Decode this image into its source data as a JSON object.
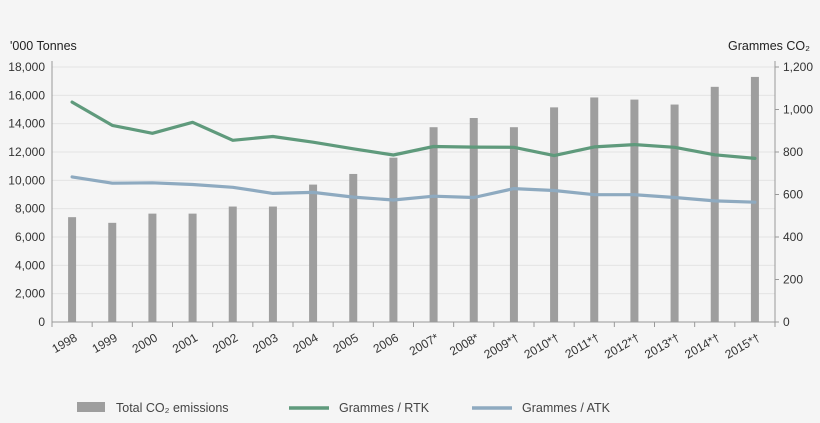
{
  "chart_data": {
    "type": "bar",
    "title": "",
    "left_axis_label": "'000 Tonnes",
    "right_axis_label": "Grammes  CO₂",
    "categories": [
      "1998",
      "1999",
      "2000",
      "2001",
      "2002",
      "2003",
      "2004",
      "2005",
      "2006",
      "2007*",
      "2008*",
      "2009*†",
      "2010*†",
      "2011*†",
      "2012*†",
      "2013*†",
      "2014*†",
      "2015*†"
    ],
    "left_axis": {
      "min": 0,
      "max": 18000,
      "ticks": [
        "0",
        "2,000",
        "4,000",
        "6,000",
        "8,000",
        "10,000",
        "12,000",
        "14,000",
        "16,000",
        "18,000"
      ]
    },
    "right_axis": {
      "min": 0,
      "max": 1200,
      "ticks": [
        "0",
        "200",
        "400",
        "600",
        "800",
        "1,000",
        "1,200"
      ]
    },
    "series": [
      {
        "name": "Total CO₂ emissions",
        "kind": "bar",
        "axis": "left",
        "color": "#9e9e9e",
        "values": [
          7400,
          7000,
          7650,
          7650,
          8150,
          8150,
          9700,
          10450,
          11600,
          13750,
          14400,
          13750,
          15150,
          15850,
          15700,
          15350,
          16600,
          17300
        ]
      },
      {
        "name": "Grammes / RTK",
        "kind": "line",
        "axis": "right",
        "color": "#5f9a7c",
        "values": [
          1035,
          925,
          888,
          940,
          855,
          873,
          846,
          815,
          786,
          826,
          823,
          822,
          783,
          824,
          835,
          822,
          787,
          770
        ]
      },
      {
        "name": "Grammes / ATK",
        "kind": "line",
        "axis": "right",
        "color": "#8eaac0",
        "values": [
          683,
          653,
          655,
          647,
          634,
          605,
          610,
          588,
          574,
          592,
          586,
          628,
          619,
          599,
          599,
          586,
          570,
          564
        ]
      }
    ],
    "grid": true,
    "legend": "bottom"
  }
}
